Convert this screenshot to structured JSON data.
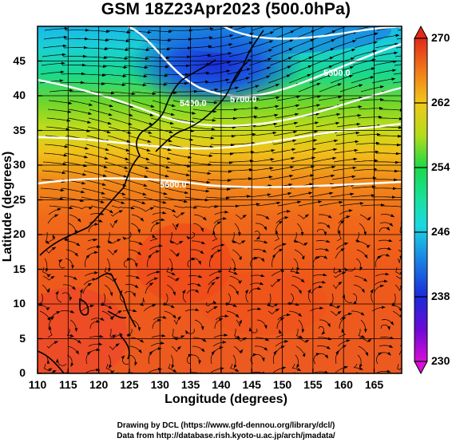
{
  "title": "GSM 18Z23Apr2023 (500.0hPa)",
  "x_axis_label": "Longitude (degrees)",
  "y_axis_label": "Latitude (degrees)",
  "x_ticks": [
    "110",
    "115",
    "120",
    "125",
    "130",
    "135",
    "140",
    "145",
    "150",
    "155",
    "160",
    "165"
  ],
  "y_ticks": [
    "0",
    "5",
    "10",
    "15",
    "20",
    "25",
    "30",
    "35",
    "40",
    "45"
  ],
  "colorbar": {
    "ticks": [
      "230",
      "238",
      "246",
      "254",
      "262",
      "270"
    ],
    "min": 230,
    "max": 270,
    "colors": [
      "#d60fd6",
      "#6a0ad6",
      "#1a2bd9",
      "#1a8fe3",
      "#1ad9e0",
      "#1ae0a0",
      "#1ad94a",
      "#7fd91a",
      "#d9e01a",
      "#f0c81a",
      "#f08a1a",
      "#f0501a",
      "#e02a1a"
    ]
  },
  "contour_labels": [
    "5400.0",
    "5500.0",
    "5600.0",
    "5700.0"
  ],
  "credits": {
    "line1": "Drawing by DCL (https://www.gfd-dennou.org/library/dcl/)",
    "line2": "Data from http://database.rish.kyoto-u.ac.jp/arch/jmadata/"
  }
}
